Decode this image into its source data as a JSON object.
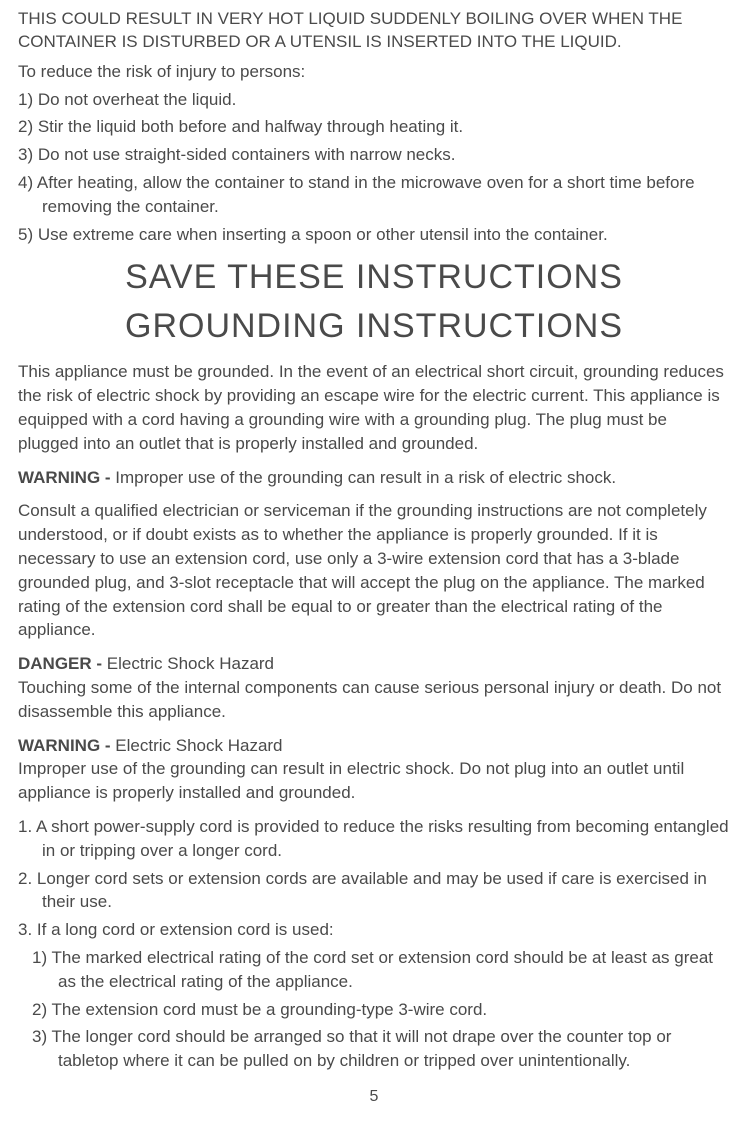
{
  "warningCaps": "THIS COULD RESULT IN VERY HOT LIQUID SUDDENLY BOILING OVER WHEN THE CONTAINER IS DISTURBED OR A UTENSIL IS INSERTED INTO THE LIQUID.",
  "reduceIntro": "To reduce the risk of injury to persons:",
  "reduceList": {
    "i1": "1) Do not overheat the liquid.",
    "i2": "2) Stir the liquid both before and halfway through heating it.",
    "i3": "3) Do not use straight-sided containers with narrow necks.",
    "i4": "4) After heating, allow the container to stand in the microwave oven for a short time before removing the container.",
    "i5": "5) Use extreme care when inserting a spoon or other utensil into the container."
  },
  "heading1": "SAVE THESE INSTRUCTIONS",
  "heading2": "GROUNDING   INSTRUCTIONS",
  "groundingPara": "This appliance must be grounded. In the event of an electrical short circuit, grounding reduces the risk of electric shock by providing an escape wire for the electric current. This appliance is equipped with a cord having a grounding wire with a grounding plug. The plug must be plugged into an outlet that is properly installed and grounded.",
  "warning1Label": "WARNING - ",
  "warning1Body": "Improper use of the grounding can result in a risk of electric shock.",
  "consultPara": "Consult a qualified electrician or serviceman if the grounding instructions are not completely understood, or if doubt exists as to whether the appliance is properly grounded. If it is necessary to use an extension cord, use only a 3-wire extension cord that has a 3-blade grounded plug, and 3-slot receptacle that will accept the plug on the appliance. The marked rating of the extension cord shall be equal to or greater than the electrical rating of the appliance.",
  "dangerLabel": "DANGER - ",
  "dangerTitle": "Electric Shock Hazard",
  "dangerBody": "Touching some of the internal components can cause serious personal injury or death. Do not disassemble this appliance.",
  "warning2Label": "WARNING - ",
  "warning2Title": "Electric Shock Hazard",
  "warning2Body": "Improper use of the grounding can result in electric shock. Do not plug into an outlet until appliance is properly installed and grounded.",
  "cordList": {
    "i1": "1. A short power-supply cord is provided to reduce the risks resulting from becoming entangled in or tripping over a longer cord.",
    "i2": "2. Longer cord sets or extension cords are available and may be used if care is exercised in their use.",
    "i3": "3. If a long cord or extension cord is used:",
    "s1": "1) The marked electrical rating of the cord set or extension cord should be at least as great as the electrical rating of the appliance.",
    "s2": "2) The extension cord must be a grounding-type  3-wire cord.",
    "s3": "3) The longer cord should be arranged so that it will not drape over the counter top or tabletop where it can be pulled on by children or tripped over unintentionally."
  },
  "pageNumber": "5"
}
